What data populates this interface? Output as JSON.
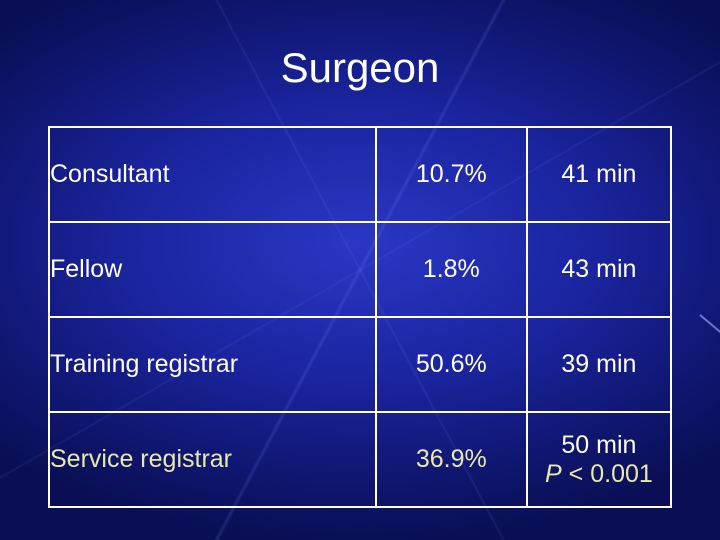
{
  "slide": {
    "title": "Surgeon"
  },
  "table": {
    "rows": [
      {
        "role": "Consultant",
        "percent": "10.7%",
        "time": "41 min"
      },
      {
        "role": "Fellow",
        "percent": "1.8%",
        "time": "43 min"
      },
      {
        "role": "Training registrar",
        "percent": "50.6%",
        "time": "39 min"
      },
      {
        "role": "Service registrar",
        "percent": "36.9%",
        "time": "50 min"
      }
    ],
    "p_value": {
      "symbol": "P",
      "text": " < 0.001"
    }
  },
  "colors": {
    "background": "#1b25a0",
    "text": "#ffffff",
    "highlight_text": "#e8e8a8"
  }
}
